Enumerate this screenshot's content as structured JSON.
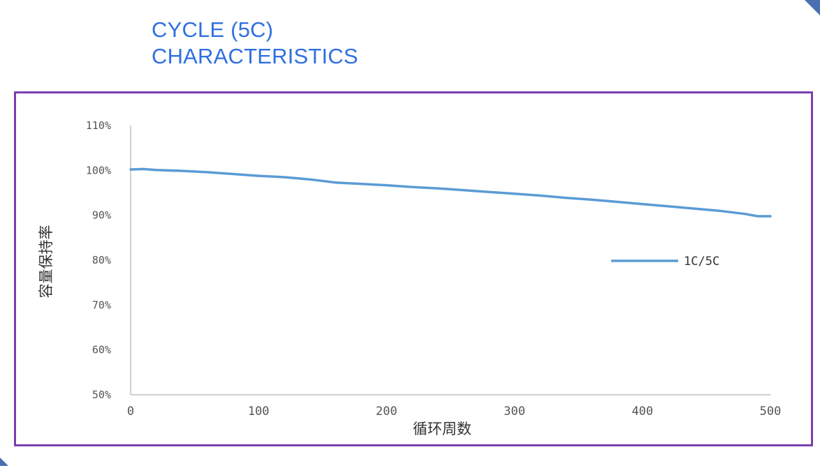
{
  "page": {
    "title_line1": "CYCLE (5C)",
    "title_line2": "CHARACTERISTICS"
  },
  "colors": {
    "title": "#2f6fe0",
    "frame": "#7a3fb0",
    "series": "#5b9bd5",
    "axis": "#bfbfbf"
  },
  "chart_data": {
    "type": "line",
    "title": "",
    "xlabel": "循环周数",
    "ylabel": "容量保持率",
    "xlim": [
      0,
      500
    ],
    "ylim": [
      50,
      110
    ],
    "x_ticks": [
      0,
      100,
      200,
      300,
      400,
      500
    ],
    "x_tick_labels": [
      "0",
      "100",
      "200",
      "300",
      "400",
      "500"
    ],
    "y_ticks": [
      50,
      60,
      70,
      80,
      90,
      100,
      110
    ],
    "y_tick_labels": [
      "50%",
      "60%",
      "70%",
      "80%",
      "90%",
      "100%",
      "110%"
    ],
    "grid": false,
    "legend_position": "right",
    "series": [
      {
        "name": "1C/5C",
        "x": [
          0,
          10,
          20,
          40,
          60,
          80,
          100,
          120,
          140,
          160,
          180,
          200,
          220,
          240,
          260,
          280,
          300,
          320,
          340,
          360,
          380,
          400,
          420,
          440,
          460,
          480,
          490,
          500
        ],
        "y": [
          100.2,
          100.3,
          100.1,
          99.9,
          99.6,
          99.2,
          98.8,
          98.5,
          98.0,
          97.3,
          97.0,
          96.7,
          96.3,
          96.0,
          95.6,
          95.2,
          94.8,
          94.4,
          93.9,
          93.5,
          93.0,
          92.5,
          92.0,
          91.5,
          91.0,
          90.3,
          89.8,
          89.8
        ]
      }
    ]
  }
}
